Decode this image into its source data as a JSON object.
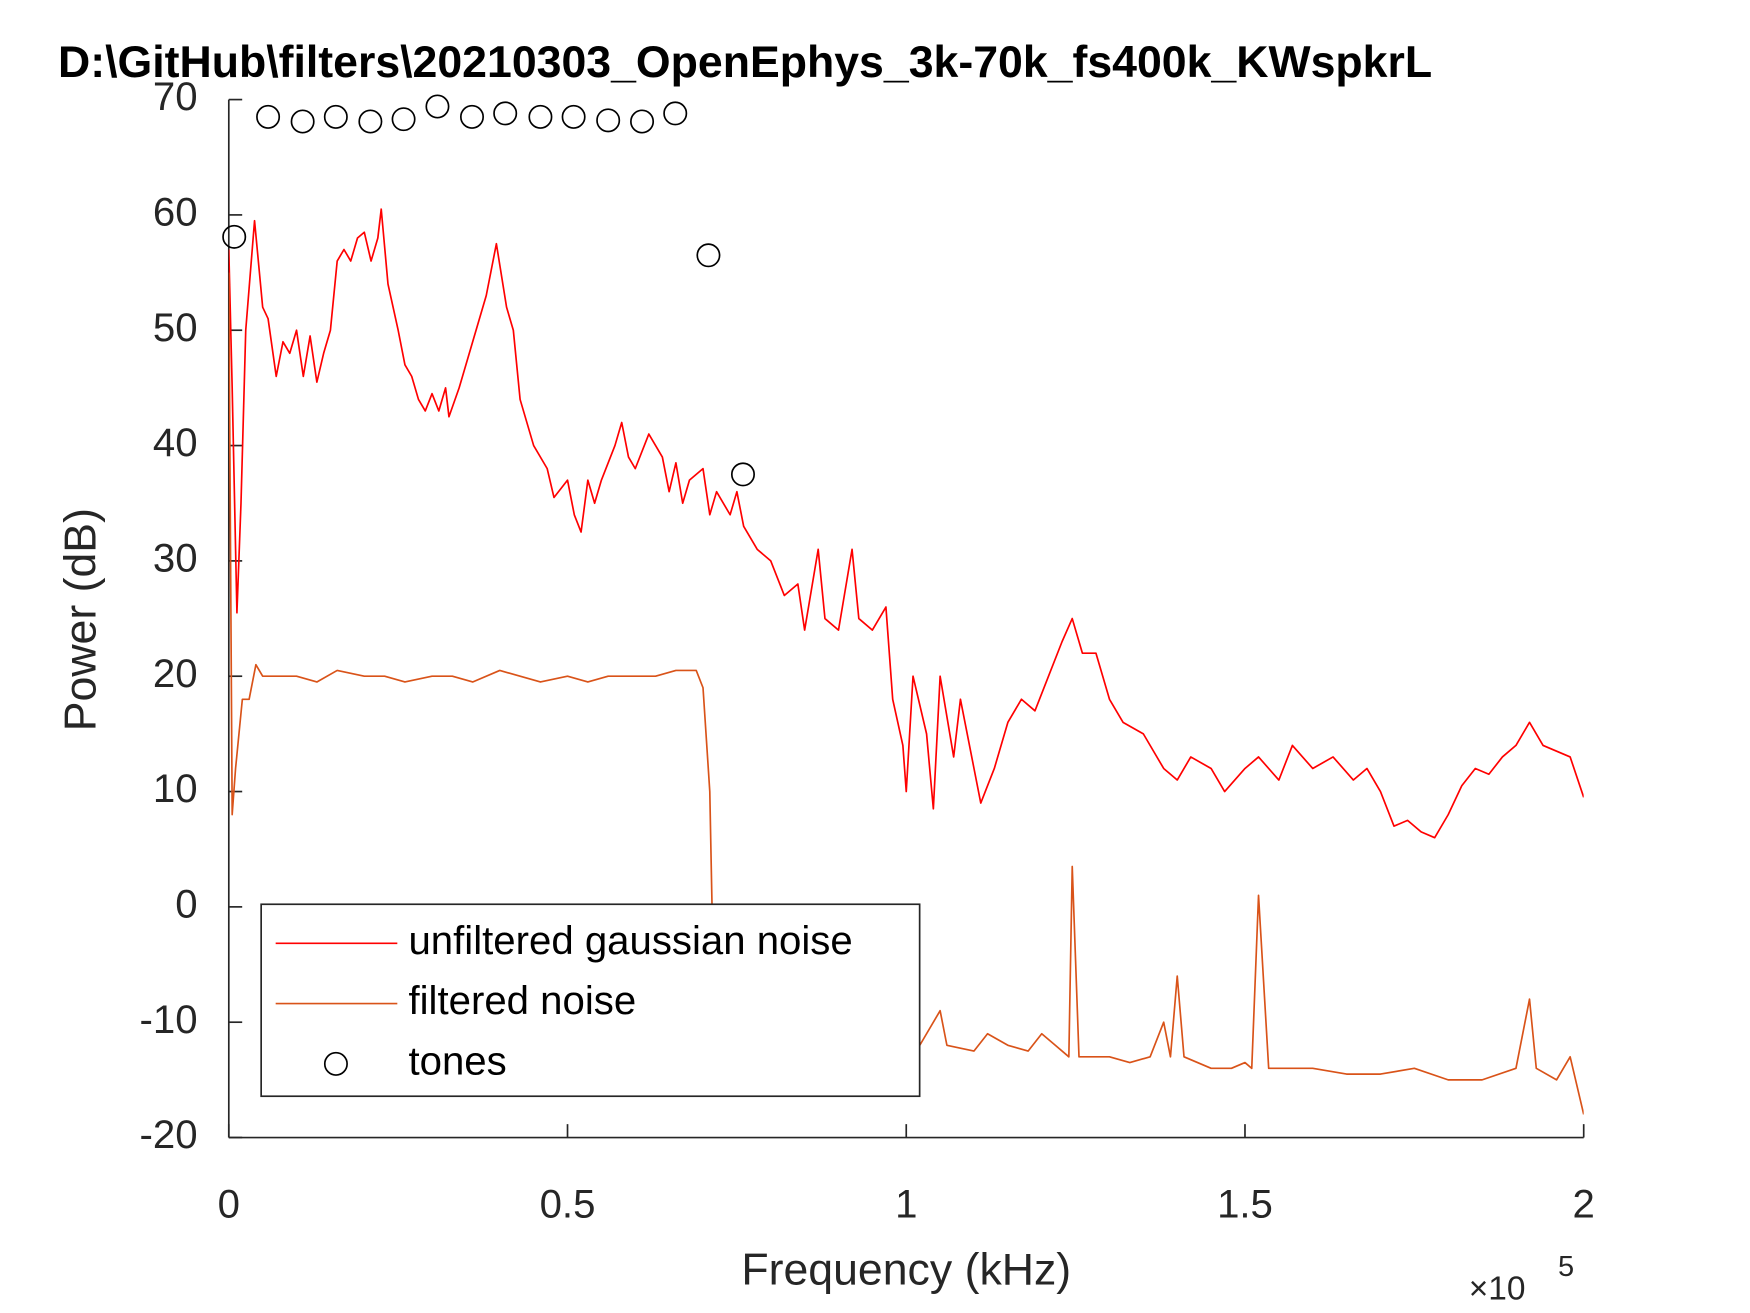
{
  "chart_data": {
    "type": "line",
    "title": "D:\\GitHub\\filters\\20210303_OpenEphys_3k-70k_fs400k_KWspkrL",
    "xlabel": "Frequency (kHz)",
    "ylabel": "Power (dB)",
    "x_multiplier_base": "×10",
    "x_multiplier_exponent": "5",
    "xlim": [
      0,
      2
    ],
    "xticks": [
      0,
      0.5,
      1,
      1.5,
      2
    ],
    "ylim": [
      -20,
      70
    ],
    "yticks": [
      -20,
      -10,
      0,
      10,
      20,
      30,
      40,
      50,
      60,
      70
    ],
    "legend_position": "lower left",
    "series": [
      {
        "name": "unfiltered gaussian noise",
        "color": "#ff0000",
        "style": "line",
        "x": [
          0,
          0.005,
          0.012,
          0.018,
          0.025,
          0.038,
          0.05,
          0.058,
          0.07,
          0.08,
          0.09,
          0.1,
          0.11,
          0.12,
          0.13,
          0.14,
          0.15,
          0.16,
          0.17,
          0.18,
          0.19,
          0.2,
          0.21,
          0.22,
          0.225,
          0.235,
          0.25,
          0.26,
          0.27,
          0.28,
          0.29,
          0.3,
          0.31,
          0.32,
          0.325,
          0.34,
          0.36,
          0.38,
          0.395,
          0.41,
          0.42,
          0.43,
          0.45,
          0.47,
          0.48,
          0.5,
          0.51,
          0.52,
          0.53,
          0.54,
          0.55,
          0.57,
          0.58,
          0.59,
          0.6,
          0.62,
          0.64,
          0.65,
          0.66,
          0.67,
          0.68,
          0.7,
          0.71,
          0.72,
          0.74,
          0.75,
          0.76,
          0.78,
          0.8,
          0.82,
          0.84,
          0.85,
          0.87,
          0.88,
          0.9,
          0.92,
          0.93,
          0.95,
          0.97,
          0.98,
          0.995,
          1.0,
          1.01,
          1.03,
          1.04,
          1.05,
          1.07,
          1.08,
          1.1,
          1.11,
          1.13,
          1.15,
          1.17,
          1.19,
          1.21,
          1.23,
          1.245,
          1.26,
          1.28,
          1.3,
          1.32,
          1.35,
          1.38,
          1.4,
          1.42,
          1.45,
          1.47,
          1.5,
          1.52,
          1.55,
          1.57,
          1.6,
          1.63,
          1.66,
          1.68,
          1.7,
          1.72,
          1.74,
          1.76,
          1.78,
          1.8,
          1.82,
          1.84,
          1.86,
          1.88,
          1.9,
          1.92,
          1.94,
          1.96,
          1.98,
          2.0
        ],
        "values": [
          57,
          45,
          25.5,
          35,
          50,
          59.5,
          52,
          51,
          46,
          49,
          48,
          50,
          46,
          49.5,
          45.5,
          48,
          50,
          56,
          57,
          56,
          58,
          58.5,
          56,
          58,
          60.5,
          54,
          50,
          47,
          46,
          44,
          43,
          44.5,
          43,
          45,
          42.5,
          45,
          49,
          53,
          57.5,
          52,
          50,
          44,
          40,
          38,
          35.5,
          37,
          34,
          32.5,
          37,
          35,
          37,
          40,
          42,
          39,
          38,
          41,
          39,
          36,
          38.5,
          35,
          37,
          38,
          34,
          36,
          34,
          36,
          33,
          31,
          30,
          27,
          28,
          24,
          31,
          25,
          24,
          31,
          25,
          24,
          26,
          18,
          14,
          10,
          20,
          15,
          8.5,
          20,
          13,
          18,
          12,
          9,
          12,
          16,
          18,
          17,
          20,
          23,
          25,
          22,
          22,
          18,
          16,
          15,
          12,
          11,
          13,
          12,
          10,
          12,
          13,
          11,
          14,
          12,
          13,
          11,
          12,
          10,
          7,
          7.5,
          6.5,
          6,
          8,
          10.5,
          12,
          11.5,
          13,
          14,
          16,
          14,
          13.5,
          13,
          9.5
        ]
      },
      {
        "name": "filtered noise",
        "color": "#d95319",
        "style": "line",
        "x": [
          0,
          0.005,
          0.01,
          0.02,
          0.03,
          0.04,
          0.05,
          0.07,
          0.1,
          0.13,
          0.16,
          0.2,
          0.23,
          0.26,
          0.3,
          0.33,
          0.36,
          0.4,
          0.43,
          0.46,
          0.5,
          0.53,
          0.56,
          0.6,
          0.63,
          0.66,
          0.69,
          0.7,
          0.71,
          0.715,
          0.72,
          0.75,
          0.8,
          0.85,
          0.9,
          0.95,
          1.02,
          1.05,
          1.06,
          1.1,
          1.12,
          1.15,
          1.18,
          1.2,
          1.22,
          1.24,
          1.245,
          1.255,
          1.3,
          1.33,
          1.36,
          1.38,
          1.39,
          1.4,
          1.41,
          1.45,
          1.48,
          1.5,
          1.51,
          1.52,
          1.535,
          1.6,
          1.65,
          1.7,
          1.75,
          1.8,
          1.85,
          1.9,
          1.92,
          1.93,
          1.96,
          1.98,
          2.0
        ],
        "values": [
          55,
          8,
          12,
          18,
          18,
          21,
          20,
          20,
          20,
          19.5,
          20.5,
          20,
          20,
          19.5,
          20,
          20,
          19.5,
          20.5,
          20,
          19.5,
          20,
          19.5,
          20,
          20,
          20,
          20.5,
          20.5,
          19,
          10,
          -5,
          -9,
          -12,
          -12,
          -13,
          -12,
          -13,
          -12,
          -9,
          -12,
          -12.5,
          -11,
          -12,
          -12.5,
          -11,
          -12,
          -13,
          3.5,
          -13,
          -13,
          -13.5,
          -13,
          -10,
          -13,
          -6,
          -13,
          -14,
          -14,
          -13.5,
          -14,
          1,
          -14,
          -14,
          -14.5,
          -14.5,
          -14,
          -15,
          -15,
          -14,
          -8,
          -14,
          -15,
          -13,
          -18
        ]
      },
      {
        "name": "tones",
        "color": "#000000",
        "style": "markers",
        "x": [
          0.008,
          0.058,
          0.109,
          0.158,
          0.209,
          0.258,
          0.308,
          0.359,
          0.408,
          0.46,
          0.509,
          0.56,
          0.61,
          0.659,
          0.708,
          0.759
        ],
        "values": [
          58.1,
          68.5,
          68.1,
          68.5,
          68.1,
          68.3,
          69.4,
          68.5,
          68.8,
          68.5,
          68.5,
          68.2,
          68.1,
          68.8,
          56.5,
          37.5
        ]
      }
    ]
  }
}
